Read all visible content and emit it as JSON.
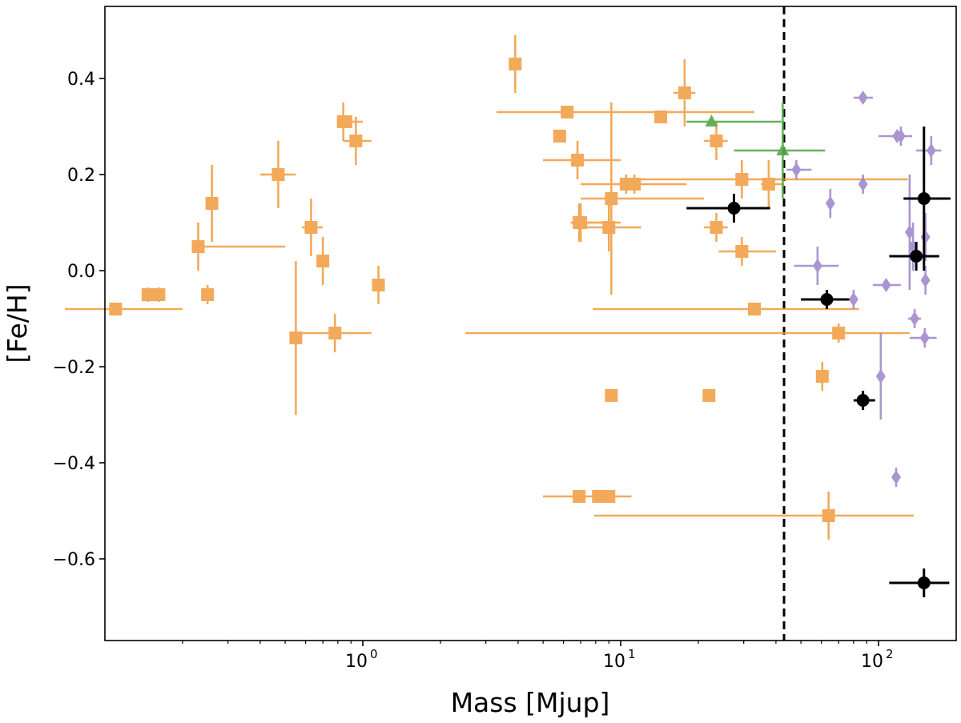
{
  "chart_data": {
    "type": "scatter",
    "xlabel": "Mass [Mjup]",
    "ylabel": "[Fe/H]",
    "xscale": "log",
    "xlim": [
      0.1,
      200
    ],
    "ylim": [
      -0.77,
      0.55
    ],
    "xticks": [
      {
        "value": 1,
        "base": "10",
        "exp": "0"
      },
      {
        "value": 10,
        "base": "10",
        "exp": "1"
      },
      {
        "value": 100,
        "base": "10",
        "exp": "2"
      }
    ],
    "yticks": [
      {
        "value": 0.4,
        "label": "0.4"
      },
      {
        "value": 0.2,
        "label": "0.2"
      },
      {
        "value": 0.0,
        "label": "0.0"
      },
      {
        "value": -0.2,
        "label": "−0.2"
      },
      {
        "value": -0.4,
        "label": "−0.4"
      },
      {
        "value": -0.6,
        "label": "−0.6"
      }
    ],
    "vline": {
      "x": 43,
      "style": "dashed",
      "color": "#000000"
    },
    "series": [
      {
        "name": "orange-squares",
        "marker": "square",
        "color": "#f29b3e",
        "points": [
          {
            "x": 0.147,
            "y": -0.05,
            "xerr": [
              0.147,
              0.147
            ],
            "yerr": [
              0.015,
              0.015
            ]
          },
          {
            "x": 0.162,
            "y": -0.05,
            "xerr": [
              0.162,
              0.162
            ],
            "yerr": [
              0.015,
              0.015
            ]
          },
          {
            "x": 0.11,
            "y": -0.08,
            "xerr": [
              0.07,
              0.2
            ],
            "yerr": [
              0,
              0
            ]
          },
          {
            "x": 0.23,
            "y": 0.05,
            "xerr": [
              0.23,
              0.5
            ],
            "yerr": [
              0.05,
              0.05
            ]
          },
          {
            "x": 0.25,
            "y": -0.05,
            "xerr": [
              0.25,
              0.25
            ],
            "yerr": [
              0.02,
              0.02
            ]
          },
          {
            "x": 0.26,
            "y": 0.14,
            "xerr": [
              0.26,
              0.26
            ],
            "yerr": [
              0.08,
              0.08
            ]
          },
          {
            "x": 0.47,
            "y": 0.2,
            "xerr": [
              0.4,
              0.55
            ],
            "yerr": [
              0.07,
              0.07
            ]
          },
          {
            "x": 0.55,
            "y": -0.14,
            "xerr": [
              0.55,
              0.55
            ],
            "yerr": [
              0.16,
              0.16
            ]
          },
          {
            "x": 0.63,
            "y": 0.09,
            "xerr": [
              0.58,
              0.7
            ],
            "yerr": [
              0.06,
              0.06
            ]
          },
          {
            "x": 0.7,
            "y": 0.02,
            "xerr": [
              0.7,
              0.7
            ],
            "yerr": [
              0.05,
              0.05
            ]
          },
          {
            "x": 0.78,
            "y": -0.13,
            "xerr": [
              0.55,
              1.08
            ],
            "yerr": [
              0.04,
              0.04
            ]
          },
          {
            "x": 0.84,
            "y": 0.31,
            "xerr": [
              0.84,
              0.84
            ],
            "yerr": [
              0.04,
              0.04
            ]
          },
          {
            "x": 0.94,
            "y": 0.27,
            "xerr": [
              0.84,
              1.08
            ],
            "yerr": [
              0.05,
              0.05
            ]
          },
          {
            "x": 0.86,
            "y": 0.31,
            "xerr": [
              0.8,
              1.0
            ],
            "yerr": [
              0,
              0
            ]
          },
          {
            "x": 1.15,
            "y": -0.03,
            "xerr": [
              1.15,
              1.15
            ],
            "yerr": [
              0.04,
              0.04
            ]
          },
          {
            "x": 3.9,
            "y": 0.43,
            "xerr": [
              3.9,
              3.9
            ],
            "yerr": [
              0.06,
              0.06
            ]
          },
          {
            "x": 6.2,
            "y": 0.33,
            "xerr": [
              3.3,
              33
            ],
            "yerr": [
              0,
              0
            ]
          },
          {
            "x": 5.8,
            "y": 0.28,
            "xerr": [
              5.8,
              5.8
            ],
            "yerr": [
              0,
              0
            ]
          },
          {
            "x": 6.8,
            "y": 0.23,
            "xerr": [
              5.0,
              10.0
            ],
            "yerr": [
              0.04,
              0.04
            ]
          },
          {
            "x": 6.9,
            "y": 0.1,
            "xerr": [
              6.4,
              9.0
            ],
            "yerr": [
              0.04,
              0.04
            ]
          },
          {
            "x": 7.0,
            "y": 0.1,
            "xerr": [
              6.4,
              10.0
            ],
            "yerr": [
              0.04,
              0.04
            ]
          },
          {
            "x": 9.0,
            "y": 0.09,
            "xerr": [
              6.8,
              12
            ],
            "yerr": [
              0.05,
              0.05
            ]
          },
          {
            "x": 9.2,
            "y": 0.15,
            "xerr": [
              7.0,
              21
            ],
            "yerr": [
              0.2,
              0.2
            ]
          },
          {
            "x": 10.5,
            "y": 0.18,
            "xerr": [
              7.0,
              12.0
            ],
            "yerr": [
              0.02,
              0.02
            ]
          },
          {
            "x": 11.3,
            "y": 0.18,
            "xerr": [
              9.8,
              18
            ],
            "yerr": [
              0.02,
              0.02
            ]
          },
          {
            "x": 14.3,
            "y": 0.32,
            "xerr": [
              14.3,
              14.3
            ],
            "yerr": [
              0,
              0
            ]
          },
          {
            "x": 17.7,
            "y": 0.37,
            "xerr": [
              16,
              19.5
            ],
            "yerr": [
              0.07,
              0.07
            ]
          },
          {
            "x": 23.5,
            "y": 0.27,
            "xerr": [
              21,
              26
            ],
            "yerr": [
              0.04,
              0.04
            ]
          },
          {
            "x": 23.5,
            "y": 0.09,
            "xerr": [
              21,
              26
            ],
            "yerr": [
              0.03,
              0.03
            ]
          },
          {
            "x": 29.5,
            "y": 0.19,
            "xerr": [
              11,
              130
            ],
            "yerr": [
              0.04,
              0.04
            ]
          },
          {
            "x": 29.5,
            "y": 0.04,
            "xerr": [
              24,
              40
            ],
            "yerr": [
              0.03,
              0.03
            ]
          },
          {
            "x": 37.5,
            "y": 0.18,
            "xerr": [
              35,
              43
            ],
            "yerr": [
              0.05,
              0.05
            ]
          },
          {
            "x": 33,
            "y": -0.08,
            "xerr": [
              7.8,
              84
            ],
            "yerr": [
              0,
              0
            ]
          },
          {
            "x": 70,
            "y": -0.13,
            "xerr": [
              2.5,
              132
            ],
            "yerr": [
              0.02,
              0.02
            ]
          },
          {
            "x": 60.5,
            "y": -0.22,
            "xerr": [
              60.5,
              60.5
            ],
            "yerr": [
              0.03,
              0.03
            ]
          },
          {
            "x": 9.2,
            "y": -0.26,
            "xerr": [
              9.2,
              9.2
            ],
            "yerr": [
              0,
              0
            ]
          },
          {
            "x": 22,
            "y": -0.26,
            "xerr": [
              22,
              22
            ],
            "yerr": [
              0,
              0
            ]
          },
          {
            "x": 6.9,
            "y": -0.47,
            "xerr": [
              5.0,
              11.0
            ],
            "yerr": [
              0,
              0
            ]
          },
          {
            "x": 8.2,
            "y": -0.47,
            "xerr": [
              8.2,
              8.2
            ],
            "yerr": [
              0,
              0
            ]
          },
          {
            "x": 9.0,
            "y": -0.47,
            "xerr": [
              9.0,
              9.0
            ],
            "yerr": [
              0,
              0
            ]
          },
          {
            "x": 64,
            "y": -0.51,
            "xerr": [
              7.9,
              137
            ],
            "yerr": [
              0.05,
              0.05
            ]
          }
        ]
      },
      {
        "name": "green-triangles",
        "marker": "triangle",
        "color": "#55a84a",
        "points": [
          {
            "x": 22.5,
            "y": 0.31,
            "xerr": [
              18,
              42
            ],
            "yerr": [
              0,
              0
            ]
          },
          {
            "x": 42.5,
            "y": 0.25,
            "xerr": [
              27.5,
              62
            ],
            "yerr": [
              0.1,
              0.1
            ]
          }
        ]
      },
      {
        "name": "purple-diamonds",
        "marker": "diamond",
        "color": "#9c83c9",
        "points": [
          {
            "x": 87,
            "y": 0.36,
            "xerr": [
              80,
              95
            ],
            "yerr": [
              0,
              0
            ]
          },
          {
            "x": 48,
            "y": 0.21,
            "xerr": [
              44,
              55
            ],
            "yerr": [
              0.02,
              0.02
            ]
          },
          {
            "x": 87,
            "y": 0.18,
            "xerr": [
              87,
              87
            ],
            "yerr": [
              0.02,
              0.02
            ]
          },
          {
            "x": 65,
            "y": 0.14,
            "xerr": [
              65,
              65
            ],
            "yerr": [
              0.03,
              0.03
            ]
          },
          {
            "x": 58,
            "y": 0.01,
            "xerr": [
              47,
              70
            ],
            "yerr": [
              0.04,
              0.04
            ]
          },
          {
            "x": 80,
            "y": -0.06,
            "xerr": [
              80,
              80
            ],
            "yerr": [
              0.02,
              0.02
            ]
          },
          {
            "x": 118,
            "y": 0.28,
            "xerr": [
              100,
              135
            ],
            "yerr": [
              0,
              0
            ]
          },
          {
            "x": 122,
            "y": 0.28,
            "xerr": [
              122,
              122
            ],
            "yerr": [
              0.02,
              0.02
            ]
          },
          {
            "x": 160,
            "y": 0.25,
            "xerr": [
              140,
              175
            ],
            "yerr": [
              0.03,
              0.03
            ]
          },
          {
            "x": 132,
            "y": 0.08,
            "xerr": [
              132,
              132
            ],
            "yerr": [
              0.12,
              0.12
            ]
          },
          {
            "x": 152,
            "y": 0.07,
            "xerr": [
              152,
              152
            ],
            "yerr": [
              0.05,
              0.05
            ]
          },
          {
            "x": 136,
            "y": 0.05,
            "xerr": [
              136,
              136
            ],
            "yerr": [
              0.05,
              0.05
            ]
          },
          {
            "x": 152,
            "y": -0.02,
            "xerr": [
              152,
              152
            ],
            "yerr": [
              0.03,
              0.03
            ]
          },
          {
            "x": 107,
            "y": -0.03,
            "xerr": [
              95,
              122
            ],
            "yerr": [
              0,
              0
            ]
          },
          {
            "x": 138,
            "y": -0.1,
            "xerr": [
              130,
              146
            ],
            "yerr": [
              0.02,
              0.02
            ]
          },
          {
            "x": 151,
            "y": -0.14,
            "xerr": [
              132,
              168
            ],
            "yerr": [
              0.02,
              0.02
            ]
          },
          {
            "x": 102,
            "y": -0.22,
            "xerr": [
              102,
              102
            ],
            "yerr": [
              0.09,
              0.09
            ]
          },
          {
            "x": 117,
            "y": -0.43,
            "xerr": [
              117,
              117
            ],
            "yerr": [
              0.02,
              0.02
            ]
          }
        ]
      },
      {
        "name": "black-circles",
        "marker": "circle",
        "color": "#000000",
        "points": [
          {
            "x": 27.5,
            "y": 0.13,
            "xerr": [
              18,
              38
            ],
            "yerr": [
              0.03,
              0.03
            ]
          },
          {
            "x": 150,
            "y": 0.15,
            "xerr": [
              125,
              190
            ],
            "yerr": [
              0.15,
              0.15
            ]
          },
          {
            "x": 140,
            "y": 0.03,
            "xerr": [
              110,
              172
            ],
            "yerr": [
              0.03,
              0.03
            ]
          },
          {
            "x": 63,
            "y": -0.06,
            "xerr": [
              50,
              77
            ],
            "yerr": [
              0.02,
              0.02
            ]
          },
          {
            "x": 87,
            "y": -0.27,
            "xerr": [
              80,
              97
            ],
            "yerr": [
              0.02,
              0.02
            ]
          },
          {
            "x": 150,
            "y": -0.65,
            "xerr": [
              110,
              188
            ],
            "yerr": [
              0.03,
              0.03
            ]
          }
        ]
      }
    ]
  }
}
